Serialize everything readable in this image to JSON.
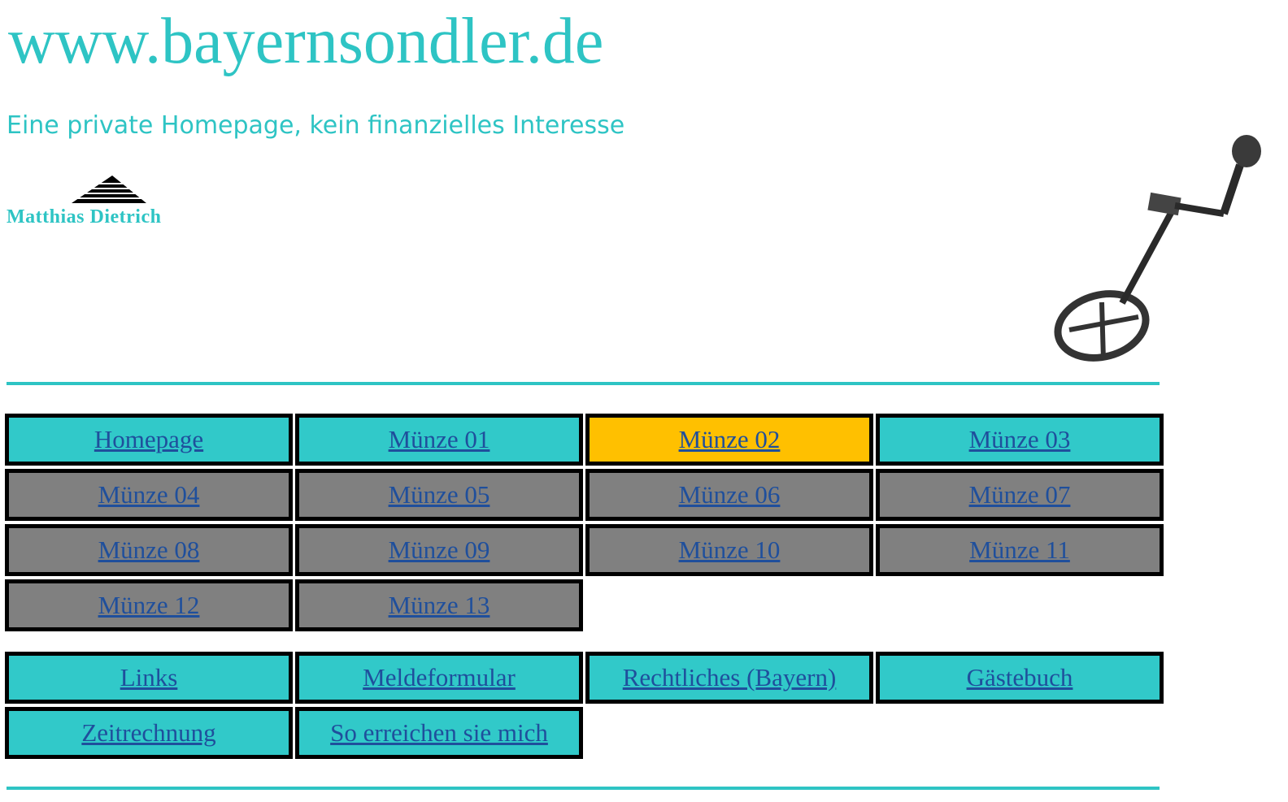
{
  "header": {
    "title": "www.bayernsondler.de",
    "subtitle": "Eine private Homepage, kein finanzielles Interesse",
    "logo_text": "Matthias Dietrich"
  },
  "nav": {
    "main": [
      "Homepage",
      "Münze 01",
      "Münze 02",
      "Münze 03",
      "Münze 04",
      "Münze 05",
      "Münze 06",
      "Münze 07",
      "Münze 08",
      "Münze 09",
      "Münze 10",
      "Münze 11",
      "Münze 12",
      "Münze 13"
    ],
    "extra": [
      "Links",
      "Meldeformular",
      "Rechtliches (Bayern)",
      "Gästebuch",
      "Zeitrechnung",
      "So erreichen sie mich"
    ]
  }
}
